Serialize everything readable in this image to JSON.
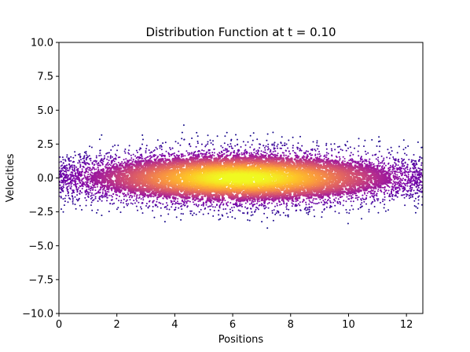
{
  "chart_data": {
    "type": "heatmap",
    "title": "Distribution Function at t = 0.10",
    "xlabel": "Positions",
    "ylabel": "Velocities",
    "xlim": [
      0,
      12.566
    ],
    "ylim": [
      -10.0,
      10.0
    ],
    "x_ticks": [
      0,
      2,
      4,
      6,
      8,
      10,
      12
    ],
    "x_tick_labels": [
      "0",
      "2",
      "4",
      "6",
      "8",
      "10",
      "12"
    ],
    "y_ticks": [
      -10.0,
      -7.5,
      -5.0,
      -2.5,
      0.0,
      2.5,
      5.0,
      7.5,
      10.0
    ],
    "y_tick_labels": [
      "−10.0",
      "−7.5",
      "−5.0",
      "−2.5",
      "0.0",
      "2.5",
      "5.0",
      "7.5",
      "10.0"
    ],
    "grid": false,
    "colormap": "plasma",
    "distribution": {
      "x_center": 6.3,
      "x_spread": 3.1,
      "v_center": 0.0,
      "v_spread": 1.0,
      "v_extent": [
        -4.2,
        4.2
      ],
      "peak_region": {
        "x": [
          4.0,
          8.5
        ],
        "v": [
          -0.8,
          0.9
        ]
      }
    }
  }
}
